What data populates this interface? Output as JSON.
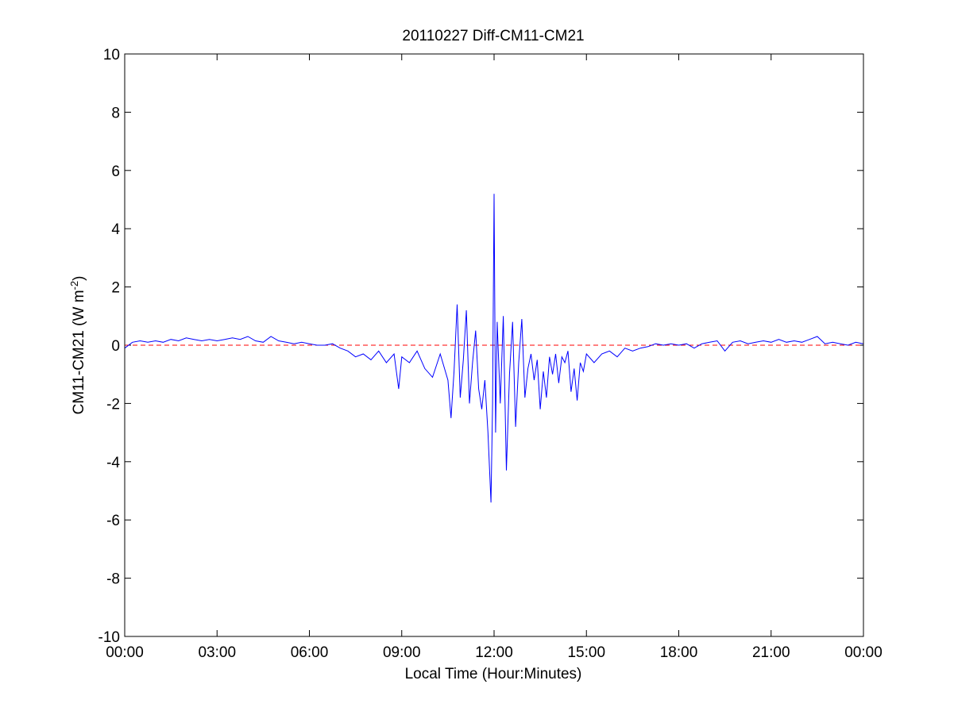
{
  "chart_data": {
    "type": "line",
    "title": "20110227 Diff-CM11-CM21",
    "xlabel": "Local Time (Hour:Minutes)",
    "ylabel_main": "CM11-CM21 (W m",
    "ylabel_sup": "-2",
    "ylabel_close": ")",
    "xlim": [
      0,
      24
    ],
    "ylim": [
      -10,
      10
    ],
    "x_ticks": [
      0,
      3,
      6,
      9,
      12,
      15,
      18,
      21,
      24
    ],
    "x_tick_labels": [
      "00:00",
      "03:00",
      "06:00",
      "09:00",
      "12:00",
      "15:00",
      "18:00",
      "21:00",
      "00:00"
    ],
    "y_ticks": [
      -10,
      -8,
      -6,
      -4,
      -2,
      0,
      2,
      4,
      6,
      8,
      10
    ],
    "y_tick_labels": [
      "-10",
      "-8",
      "-6",
      "-4",
      "-2",
      "0",
      "2",
      "4",
      "6",
      "8",
      "10"
    ],
    "grid": false,
    "reference_line": {
      "y": 0,
      "style": "dashed",
      "color": "#ff0000"
    },
    "series": [
      {
        "color": "#0000ff",
        "x": [
          0.0,
          0.25,
          0.5,
          0.75,
          1.0,
          1.25,
          1.5,
          1.75,
          2.0,
          2.25,
          2.5,
          2.75,
          3.0,
          3.25,
          3.5,
          3.75,
          4.0,
          4.25,
          4.5,
          4.75,
          5.0,
          5.25,
          5.5,
          5.75,
          6.0,
          6.25,
          6.5,
          6.75,
          7.0,
          7.25,
          7.5,
          7.75,
          8.0,
          8.25,
          8.5,
          8.75,
          8.9,
          9.0,
          9.25,
          9.5,
          9.75,
          10.0,
          10.25,
          10.5,
          10.6,
          10.7,
          10.8,
          10.9,
          11.0,
          11.1,
          11.2,
          11.3,
          11.4,
          11.5,
          11.6,
          11.7,
          11.8,
          11.9,
          11.95,
          12.0,
          12.05,
          12.1,
          12.2,
          12.3,
          12.4,
          12.5,
          12.6,
          12.7,
          12.8,
          12.9,
          13.0,
          13.1,
          13.2,
          13.3,
          13.4,
          13.5,
          13.6,
          13.7,
          13.8,
          13.9,
          14.0,
          14.1,
          14.2,
          14.3,
          14.4,
          14.5,
          14.6,
          14.7,
          14.8,
          14.9,
          15.0,
          15.25,
          15.5,
          15.75,
          16.0,
          16.25,
          16.5,
          16.75,
          17.0,
          17.25,
          17.5,
          17.75,
          18.0,
          18.25,
          18.5,
          18.75,
          19.0,
          19.25,
          19.5,
          19.75,
          20.0,
          20.25,
          20.5,
          20.75,
          21.0,
          21.25,
          21.5,
          21.75,
          22.0,
          22.25,
          22.5,
          22.75,
          23.0,
          23.25,
          23.5,
          23.75,
          24.0
        ],
        "y": [
          -0.1,
          0.1,
          0.15,
          0.1,
          0.15,
          0.1,
          0.2,
          0.15,
          0.25,
          0.2,
          0.15,
          0.2,
          0.15,
          0.2,
          0.25,
          0.2,
          0.3,
          0.15,
          0.1,
          0.3,
          0.15,
          0.1,
          0.05,
          0.1,
          0.05,
          0.0,
          0.0,
          0.05,
          -0.1,
          -0.2,
          -0.4,
          -0.3,
          -0.5,
          -0.2,
          -0.6,
          -0.3,
          -1.5,
          -0.4,
          -0.6,
          -0.2,
          -0.8,
          -1.1,
          -0.3,
          -1.2,
          -2.5,
          -0.9,
          1.4,
          -1.8,
          -0.5,
          1.2,
          -2.0,
          -0.6,
          0.5,
          -1.5,
          -2.2,
          -1.2,
          -3.0,
          -5.4,
          -2.0,
          5.2,
          -3.0,
          0.8,
          -2.0,
          1.0,
          -4.3,
          -1.0,
          0.8,
          -2.8,
          -0.6,
          0.9,
          -1.8,
          -0.8,
          -0.3,
          -1.2,
          -0.5,
          -2.2,
          -0.9,
          -1.8,
          -0.4,
          -1.0,
          -0.3,
          -1.3,
          -0.4,
          -0.6,
          -0.2,
          -1.6,
          -0.8,
          -1.9,
          -0.6,
          -0.9,
          -0.3,
          -0.6,
          -0.3,
          -0.2,
          -0.4,
          -0.1,
          -0.2,
          -0.1,
          -0.05,
          0.05,
          0.0,
          0.05,
          0.0,
          0.05,
          -0.1,
          0.05,
          0.1,
          0.15,
          -0.2,
          0.1,
          0.15,
          0.05,
          0.1,
          0.15,
          0.1,
          0.2,
          0.1,
          0.15,
          0.1,
          0.2,
          0.3,
          0.05,
          0.1,
          0.05,
          0.0,
          0.1,
          0.05
        ]
      }
    ]
  }
}
